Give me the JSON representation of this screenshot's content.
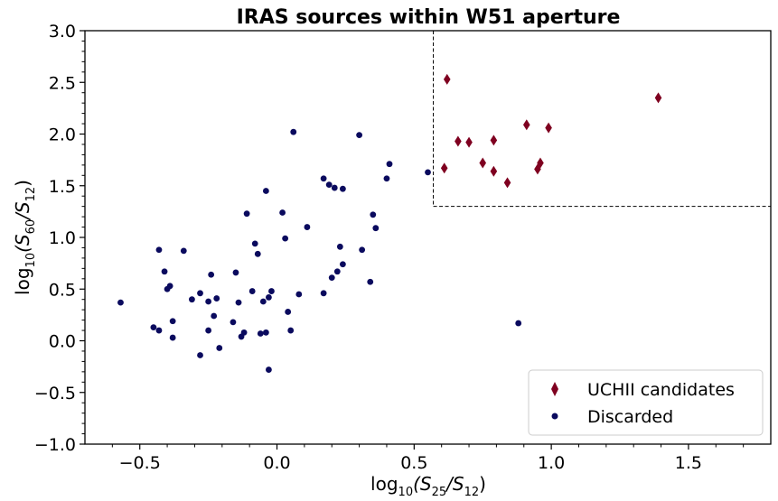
{
  "chart_data": {
    "type": "scatter",
    "title": "IRAS sources within W51 aperture",
    "xlabel": {
      "base": "log",
      "sub": "10",
      "open": "(S",
      "num_sub": "25",
      "slash": "/S",
      "den_sub": "12",
      "close": ")"
    },
    "ylabel": {
      "base": "log",
      "sub": "10",
      "open": "(S",
      "num_sub": "60",
      "slash": "/S",
      "den_sub": "12",
      "close": ")"
    },
    "xlim": [
      -0.7,
      1.8
    ],
    "ylim": [
      -1.0,
      3.0
    ],
    "xticks": [
      -0.5,
      0.0,
      0.5,
      1.0,
      1.5
    ],
    "xtick_labels": [
      "−0.5",
      "0.0",
      "0.5",
      "1.0",
      "1.5"
    ],
    "yticks": [
      -1.0,
      -0.5,
      0.0,
      0.5,
      1.0,
      1.5,
      2.0,
      2.5,
      3.0
    ],
    "ytick_labels": [
      "−1.0",
      "−0.5",
      "0.0",
      "0.5",
      "1.0",
      "1.5",
      "2.0",
      "2.5",
      "3.0"
    ],
    "selection_box": {
      "x_min": 0.57,
      "y_min": 1.3
    },
    "grid": false,
    "legend_position": "lower-right",
    "series": [
      {
        "name": "UCHII candidates",
        "marker": "diamond",
        "color": "#7f0020",
        "x": [
          0.62,
          0.61,
          0.66,
          0.7,
          0.75,
          0.79,
          0.79,
          0.84,
          0.91,
          0.95,
          0.96,
          0.99,
          1.39
        ],
        "y": [
          2.53,
          1.67,
          1.93,
          1.92,
          1.72,
          1.94,
          1.64,
          1.53,
          2.09,
          1.66,
          1.72,
          2.06,
          2.35
        ]
      },
      {
        "name": "Discarded",
        "marker": "circle",
        "color": "#0a0a5e",
        "x": [
          -0.57,
          -0.45,
          -0.43,
          -0.43,
          -0.41,
          -0.4,
          -0.39,
          -0.38,
          -0.38,
          -0.34,
          -0.31,
          -0.28,
          -0.28,
          -0.25,
          -0.25,
          -0.24,
          -0.23,
          -0.22,
          -0.21,
          -0.16,
          -0.15,
          -0.14,
          -0.13,
          -0.12,
          -0.11,
          -0.09,
          -0.08,
          -0.07,
          -0.06,
          -0.05,
          -0.04,
          -0.04,
          -0.03,
          -0.03,
          -0.02,
          0.02,
          0.03,
          0.04,
          0.05,
          0.06,
          0.08,
          0.11,
          0.17,
          0.17,
          0.19,
          0.2,
          0.21,
          0.22,
          0.23,
          0.24,
          0.24,
          0.3,
          0.31,
          0.34,
          0.35,
          0.36,
          0.4,
          0.41,
          0.55,
          0.88
        ],
        "y": [
          0.37,
          0.13,
          0.88,
          0.1,
          0.67,
          0.5,
          0.53,
          0.19,
          0.03,
          0.87,
          0.4,
          0.46,
          -0.14,
          0.1,
          0.38,
          0.64,
          0.24,
          0.41,
          -0.07,
          0.18,
          0.66,
          0.37,
          0.04,
          0.08,
          1.23,
          0.48,
          0.94,
          0.84,
          0.07,
          0.38,
          0.08,
          1.45,
          -0.28,
          0.42,
          0.48,
          1.24,
          0.99,
          0.28,
          0.1,
          2.02,
          0.45,
          1.1,
          0.46,
          1.57,
          1.51,
          0.61,
          1.48,
          0.67,
          0.91,
          0.74,
          1.47,
          1.99,
          0.88,
          0.57,
          1.22,
          1.09,
          1.57,
          1.71,
          1.63,
          0.17
        ]
      }
    ]
  }
}
